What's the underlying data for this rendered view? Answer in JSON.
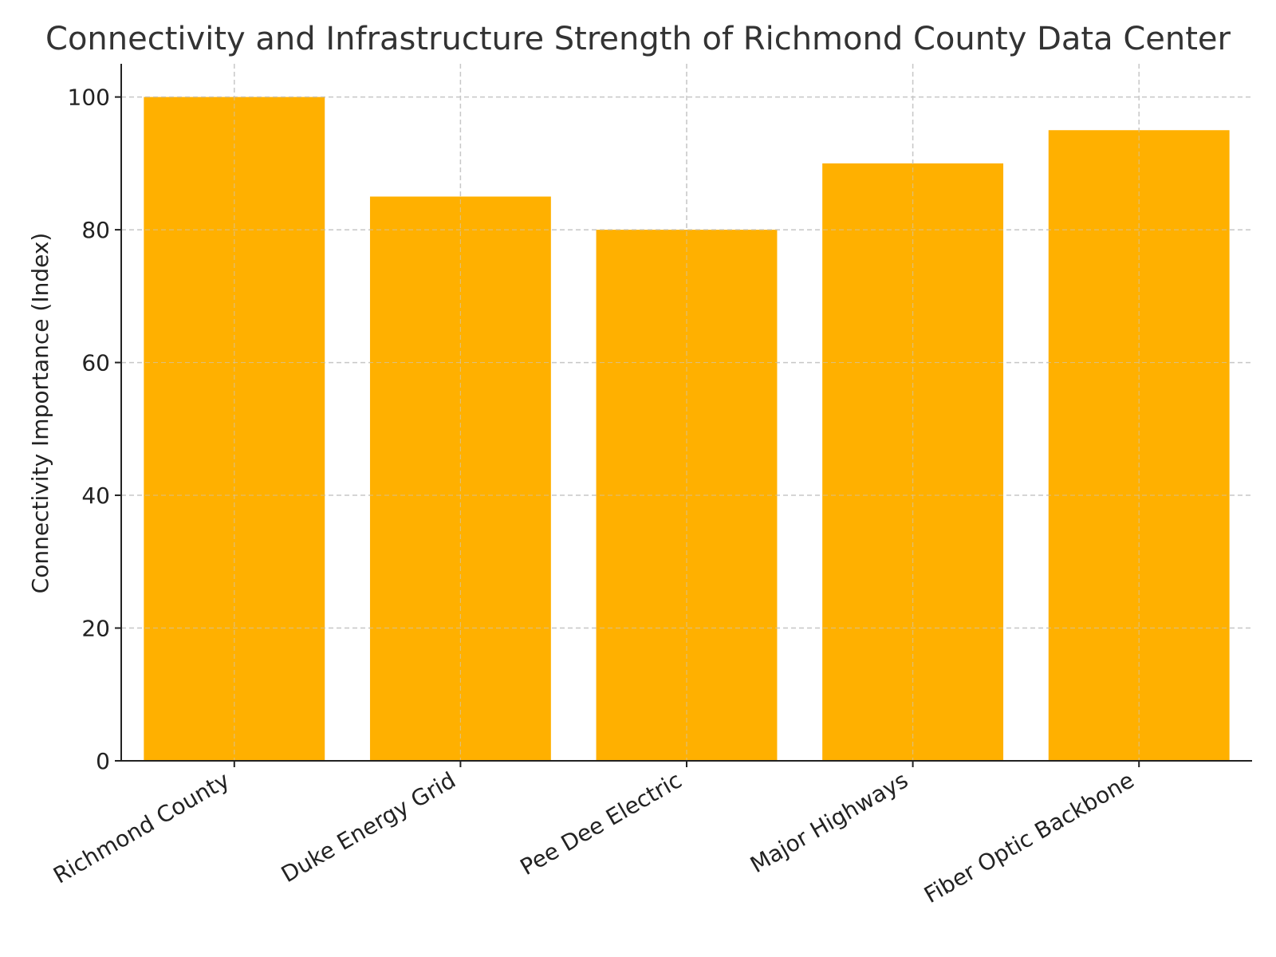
{
  "chart_data": {
    "type": "bar",
    "title": "Connectivity and Infrastructure Strength of Richmond County Data Center",
    "xlabel": "",
    "ylabel": "Connectivity Importance (Index)",
    "categories": [
      "Richmond County",
      "Duke Energy Grid",
      "Pee Dee Electric",
      "Major Highways",
      "Fiber Optic Backbone"
    ],
    "values": [
      100,
      85,
      80,
      90,
      95
    ],
    "ylim": [
      0,
      105
    ],
    "yticks": [
      0,
      20,
      40,
      60,
      80,
      100
    ],
    "grid": true,
    "legend": "none",
    "colors": {
      "bar": "#FFB000",
      "grid": "#c8c8c8",
      "axis": "#222222",
      "text": "#222222",
      "title": "#333333"
    }
  }
}
